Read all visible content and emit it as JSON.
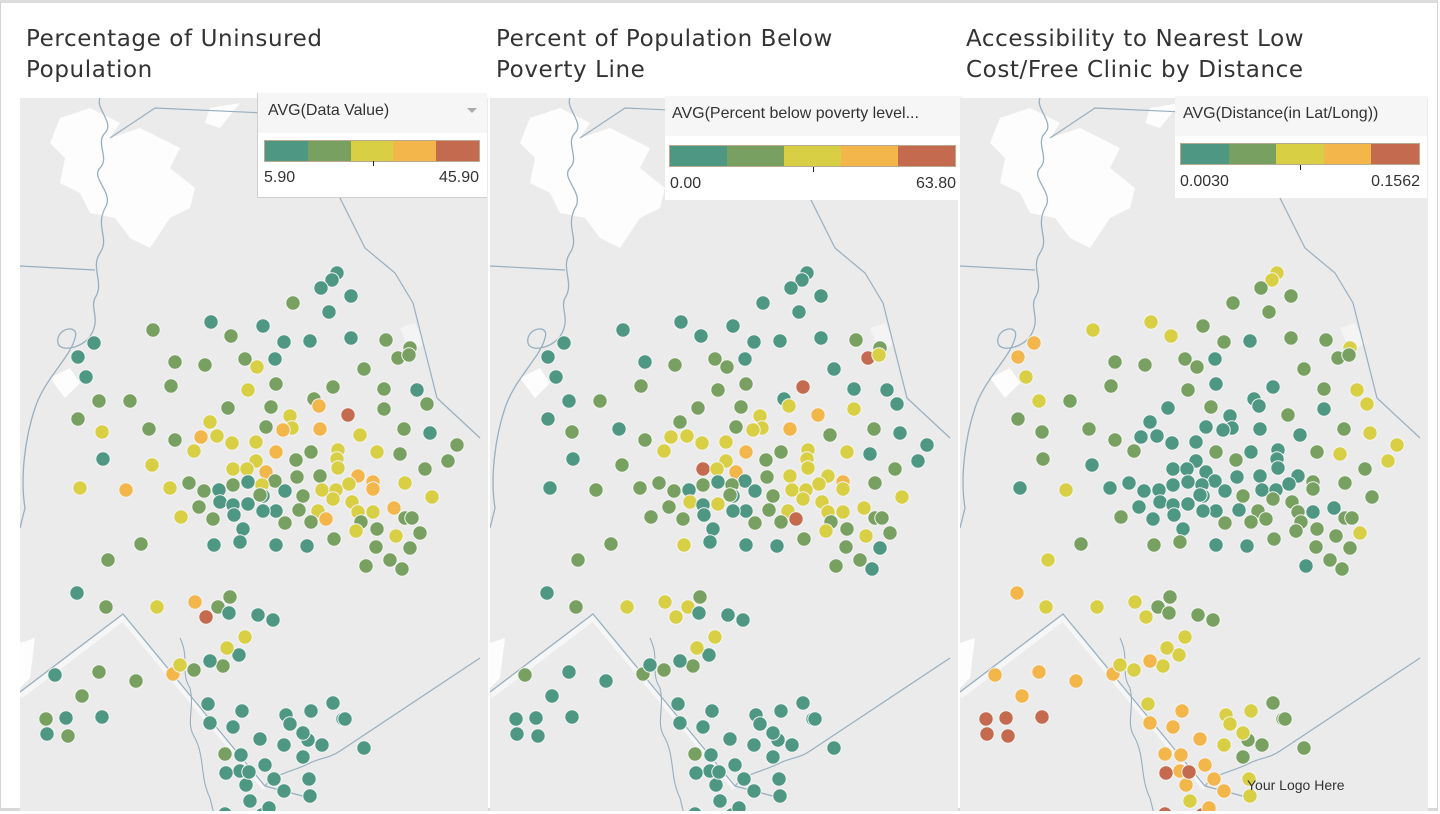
{
  "colors": {
    "class_0": "#4e9783",
    "class_1": "#78a060",
    "class_2": "#d9cf45",
    "class_3": "#f2b64a",
    "class_4": "#c46a4e",
    "land": "#ebebeb",
    "water": "#ffffff",
    "border": "#98afc0"
  },
  "panels": [
    {
      "title_line1": "Percentage of Uninsured",
      "title_line2": "Population",
      "legend": {
        "field": "AVG(Data Value)",
        "min": "5.90",
        "max": "45.90",
        "has_dropdown": true
      }
    },
    {
      "title_line1": "Percent of Population Below",
      "title_line2": "Poverty Line",
      "legend": {
        "field": "AVG(Percent below poverty level...",
        "min": "0.00",
        "max": "63.80",
        "has_dropdown": false
      }
    },
    {
      "title_line1": "Accessibility to Nearest Low",
      "title_line2": "Cost/Free Clinic by Distance",
      "legend": {
        "field": "AVG(Distance(in Lat/Long))",
        "min": "0.0030",
        "max": "0.1562",
        "has_dropdown": false
      }
    }
  ],
  "logo_text": "Your Logo Here",
  "chart_data": {
    "type": "scatter",
    "description": "Three symbol maps of the same census tracts, colored in 5 stepped classes (0 = lowest/teal ... 4 = highest/red)",
    "color_classes": [
      "teal (lowest)",
      "green",
      "yellow",
      "orange",
      "red (highest)"
    ],
    "maps": [
      {
        "name": "Percentage of Uninsured Population",
        "measure": "AVG(Data Value)",
        "range": [
          5.9,
          45.9
        ]
      },
      {
        "name": "Percent of Population Below Poverty Line",
        "measure": "AVG(Percent below poverty level)",
        "range": [
          0.0,
          63.8
        ]
      },
      {
        "name": "Accessibility to Nearest Low Cost/Free Clinic by Distance",
        "measure": "AVG(Distance(in Lat/Long))",
        "range": [
          0.003,
          0.1562
        ]
      }
    ]
  }
}
